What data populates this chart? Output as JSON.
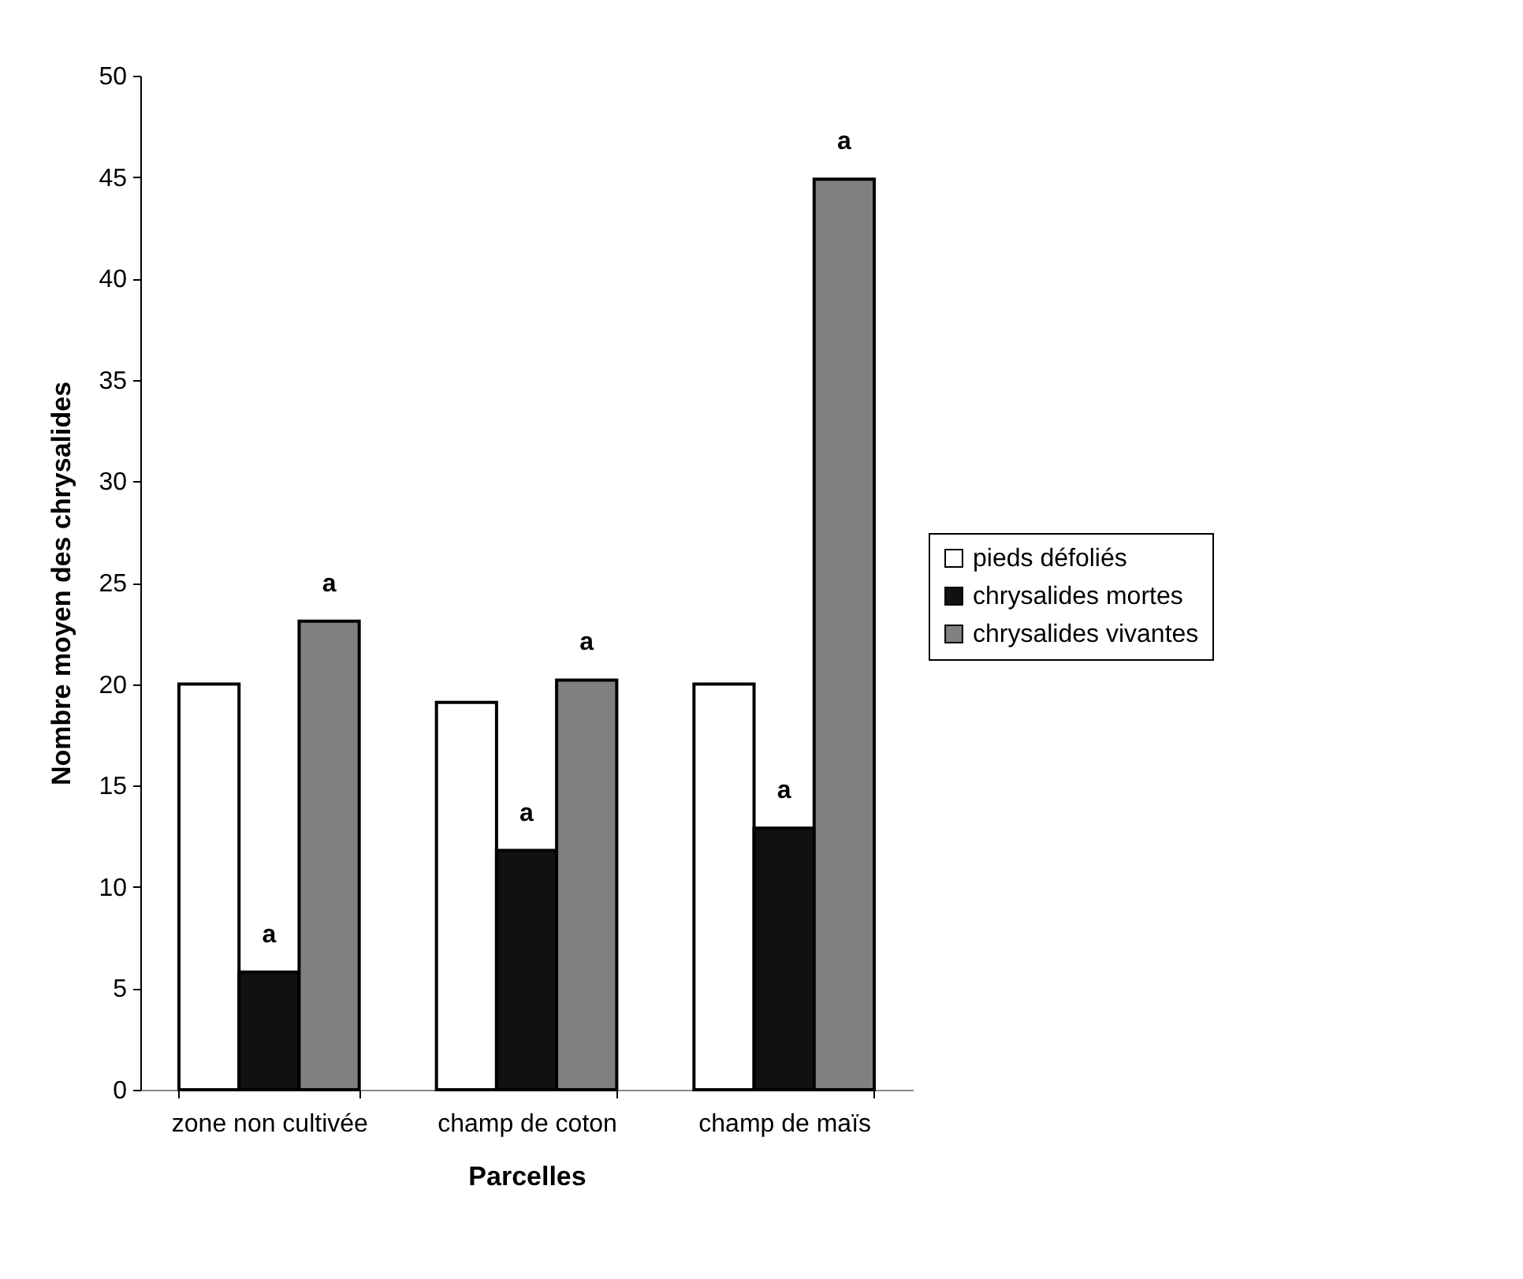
{
  "chart_data": {
    "type": "bar",
    "xlabel": "Parcelles",
    "ylabel": "Nombre moyen des chrysalides",
    "categories": [
      "zone non cultivée",
      "champ de coton",
      "champ de maïs"
    ],
    "series": [
      {
        "name": "pieds défoliés",
        "color": "#ffffff",
        "values": [
          20,
          19.1,
          20
        ]
      },
      {
        "name": "chrysalides mortes",
        "color": "#111111",
        "values": [
          5.8,
          11.8,
          12.9
        ],
        "value_labels": [
          "a",
          "a",
          "a"
        ]
      },
      {
        "name": "chrysalides vivantes",
        "color": "#808080",
        "values": [
          23.1,
          20.2,
          44.9
        ],
        "value_labels": [
          "a",
          "a",
          "a"
        ]
      }
    ],
    "ylim": [
      0,
      50
    ],
    "yticks": [
      0,
      5,
      10,
      15,
      20,
      25,
      30,
      35,
      40,
      45,
      50
    ],
    "grid": false,
    "legend": "right"
  }
}
